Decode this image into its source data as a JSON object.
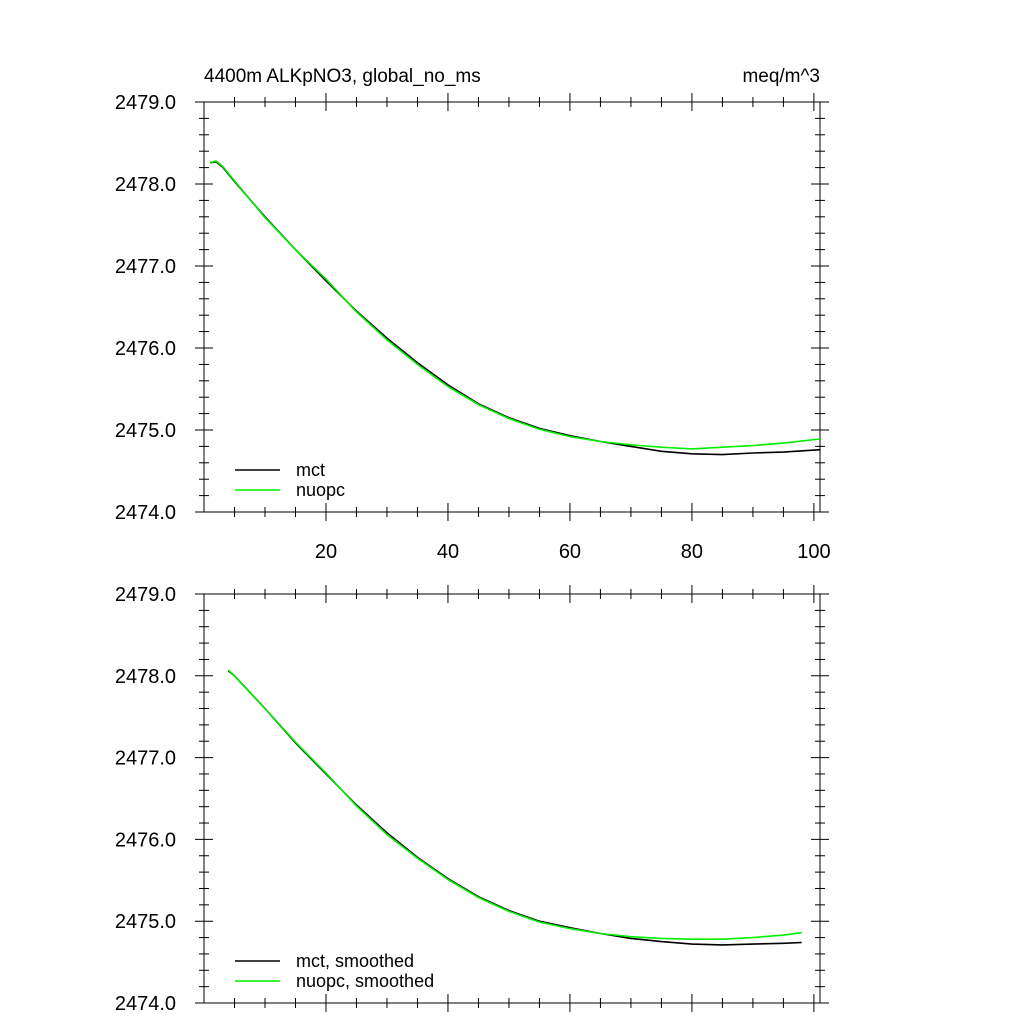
{
  "header": {
    "left_title": "4400m ALKpNO3, global_no_ms",
    "right_title": "meq/m^3"
  },
  "chart_data": [
    {
      "type": "line",
      "title": "4400m ALKpNO3, global_no_ms",
      "units": "meq/m^3",
      "xlim": [
        0,
        101
      ],
      "ylim": [
        2474.0,
        2479.0
      ],
      "x_ticks": [
        20,
        40,
        60,
        80,
        100
      ],
      "x_tick_labels": [
        "20",
        "40",
        "60",
        "80",
        "100"
      ],
      "y_ticks": [
        2474.0,
        2475.0,
        2476.0,
        2477.0,
        2478.0,
        2479.0
      ],
      "y_tick_labels": [
        "2474.0",
        "2475.0",
        "2476.0",
        "2477.0",
        "2478.0",
        "2479.0"
      ],
      "legend_position": "bottom-left",
      "grid": false,
      "series": [
        {
          "name": "mct",
          "color": "#000000",
          "x": [
            1,
            2,
            3,
            5,
            10,
            15,
            20,
            25,
            30,
            35,
            40,
            45,
            50,
            55,
            60,
            65,
            70,
            75,
            80,
            85,
            90,
            95,
            101
          ],
          "y": [
            2478.26,
            2478.27,
            2478.21,
            2478.03,
            2477.6,
            2477.2,
            2476.82,
            2476.45,
            2476.12,
            2475.82,
            2475.55,
            2475.32,
            2475.15,
            2475.02,
            2474.93,
            2474.86,
            2474.8,
            2474.74,
            2474.71,
            2474.7,
            2474.72,
            2474.73,
            2474.76
          ]
        },
        {
          "name": "nuopc",
          "color": "#00ee00",
          "x": [
            1,
            2,
            3,
            5,
            10,
            15,
            20,
            25,
            30,
            35,
            40,
            45,
            50,
            55,
            60,
            65,
            70,
            75,
            80,
            85,
            90,
            95,
            101
          ],
          "y": [
            2478.26,
            2478.28,
            2478.22,
            2478.04,
            2477.59,
            2477.2,
            2476.84,
            2476.44,
            2476.1,
            2475.8,
            2475.53,
            2475.31,
            2475.14,
            2475.01,
            2474.92,
            2474.86,
            2474.82,
            2474.79,
            2474.77,
            2474.79,
            2474.81,
            2474.84,
            2474.89
          ]
        }
      ]
    },
    {
      "type": "line",
      "xlim": [
        0,
        101
      ],
      "ylim": [
        2474.0,
        2479.0
      ],
      "x_ticks": [
        20,
        40,
        60,
        80,
        100
      ],
      "y_ticks": [
        2474.0,
        2475.0,
        2476.0,
        2477.0,
        2478.0,
        2479.0
      ],
      "y_tick_labels": [
        "2474.0",
        "2475.0",
        "2476.0",
        "2477.0",
        "2478.0",
        "2479.0"
      ],
      "legend_position": "bottom-left",
      "grid": false,
      "series": [
        {
          "name": "mct, smoothed",
          "color": "#000000",
          "x": [
            4,
            5,
            10,
            15,
            20,
            25,
            30,
            35,
            40,
            45,
            50,
            55,
            60,
            65,
            70,
            75,
            80,
            85,
            90,
            95,
            98
          ],
          "y": [
            2478.06,
            2478.0,
            2477.6,
            2477.18,
            2476.8,
            2476.42,
            2476.08,
            2475.78,
            2475.52,
            2475.3,
            2475.13,
            2475.0,
            2474.92,
            2474.85,
            2474.79,
            2474.75,
            2474.72,
            2474.71,
            2474.72,
            2474.73,
            2474.74
          ]
        },
        {
          "name": "nuopc, smoothed",
          "color": "#00ee00",
          "x": [
            4,
            5,
            10,
            15,
            20,
            25,
            30,
            35,
            40,
            45,
            50,
            55,
            60,
            65,
            70,
            75,
            80,
            85,
            90,
            95,
            98
          ],
          "y": [
            2478.07,
            2478.0,
            2477.6,
            2477.19,
            2476.81,
            2476.41,
            2476.06,
            2475.77,
            2475.51,
            2475.29,
            2475.12,
            2474.99,
            2474.91,
            2474.85,
            2474.81,
            2474.79,
            2474.78,
            2474.78,
            2474.8,
            2474.83,
            2474.86
          ]
        }
      ]
    }
  ]
}
